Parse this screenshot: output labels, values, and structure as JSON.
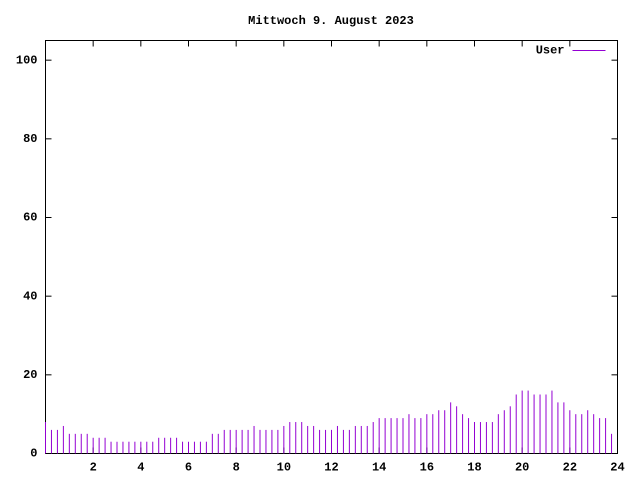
{
  "chart_data": {
    "type": "impulses",
    "title": "Mittwoch 9. August 2023",
    "x": [
      0,
      0.25,
      0.5,
      0.75,
      1,
      1.25,
      1.5,
      1.75,
      2,
      2.25,
      2.5,
      2.75,
      3,
      3.25,
      3.5,
      3.75,
      4,
      4.25,
      4.5,
      4.75,
      5,
      5.25,
      5.5,
      5.75,
      6,
      6.25,
      6.5,
      6.75,
      7,
      7.25,
      7.5,
      7.75,
      8,
      8.25,
      8.5,
      8.75,
      9,
      9.25,
      9.5,
      9.75,
      10,
      10.25,
      10.5,
      10.75,
      11,
      11.25,
      11.5,
      11.75,
      12,
      12.25,
      12.5,
      12.75,
      13,
      13.25,
      13.5,
      13.75,
      14,
      14.25,
      14.5,
      14.75,
      15,
      15.25,
      15.5,
      15.75,
      16,
      16.25,
      16.5,
      16.75,
      17,
      17.25,
      17.5,
      17.75,
      18,
      18.25,
      18.5,
      18.75,
      19,
      19.25,
      19.5,
      19.75,
      20,
      20.25,
      20.5,
      20.75,
      21,
      21.25,
      21.5,
      21.75,
      22,
      22.25,
      22.5,
      22.75,
      23,
      23.25,
      23.5,
      23.75
    ],
    "series": [
      {
        "name": "User",
        "color": "#9400d3",
        "values": [
          8,
          6,
          6,
          7,
          5,
          5,
          5,
          5,
          4,
          4,
          4,
          3,
          3,
          3,
          3,
          3,
          3,
          3,
          3,
          4,
          4,
          4,
          4,
          3,
          3,
          3,
          3,
          3,
          5,
          5,
          6,
          6,
          6,
          6,
          6,
          7,
          6,
          6,
          6,
          6,
          7,
          8,
          8,
          8,
          7,
          7,
          6,
          6,
          6,
          7,
          6,
          6,
          7,
          7,
          7,
          8,
          9,
          9,
          9,
          9,
          9,
          10,
          9,
          9,
          10,
          10,
          11,
          11,
          13,
          12,
          10,
          9,
          8,
          8,
          8,
          8,
          10,
          11,
          12,
          15,
          16,
          16,
          15,
          15,
          15,
          16,
          13,
          13,
          11,
          10,
          10,
          11,
          10,
          9,
          9,
          5
        ]
      }
    ],
    "xlim": [
      0,
      24
    ],
    "xticks": [
      2,
      4,
      6,
      8,
      10,
      12,
      14,
      16,
      18,
      20,
      22,
      24
    ],
    "ylim": [
      0,
      105
    ],
    "yticks": [
      0,
      20,
      40,
      60,
      80,
      100
    ],
    "legend": "top-right"
  }
}
